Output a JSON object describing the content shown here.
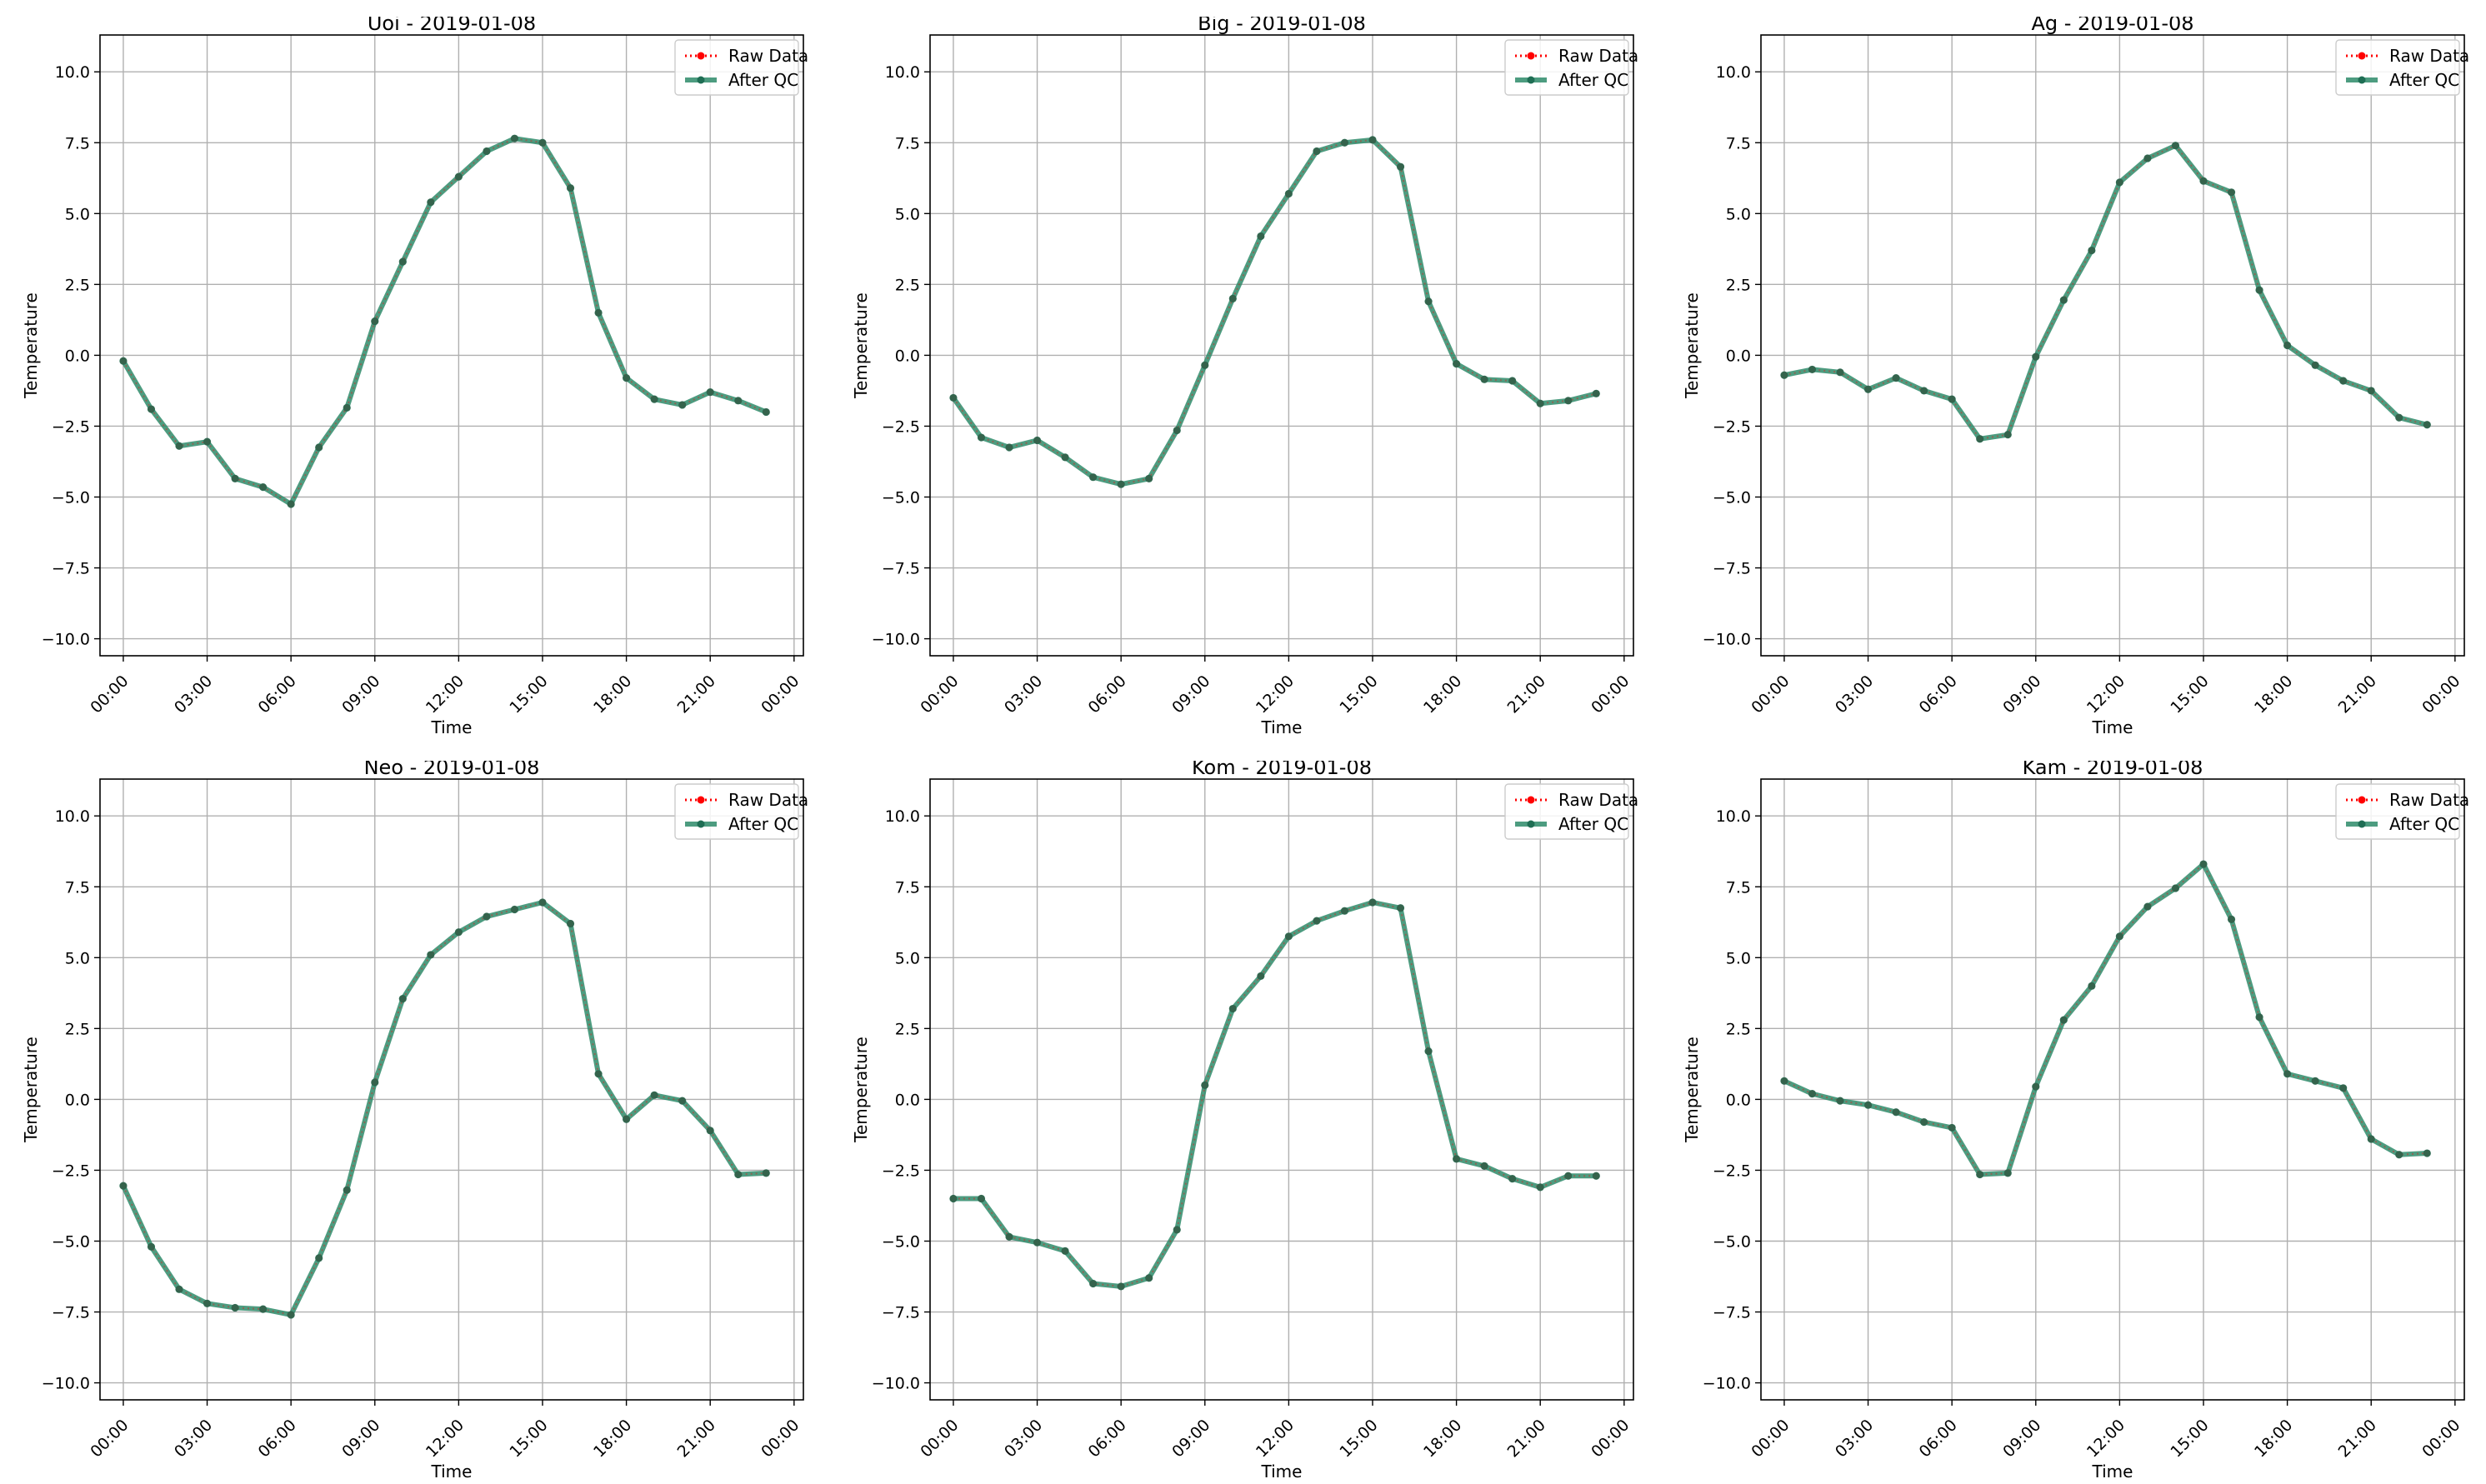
{
  "figure": {
    "background": "#ffffff"
  },
  "style": {
    "raw_color": "#ff0000",
    "qc_color": "#2e8b6a",
    "qc_point_color": "#1f6e54",
    "grid_color": "#b0b0b0",
    "legend_border": "#cccccc"
  },
  "chart_data": [
    {
      "type": "line",
      "title": "Uoi - 2019-01-08",
      "xlabel": "Time",
      "ylabel": "Temperature",
      "x_ticks": [
        "00:00",
        "03:00",
        "06:00",
        "09:00",
        "12:00",
        "15:00",
        "18:00",
        "21:00",
        "00:00"
      ],
      "y_ticks": [
        "10.0",
        "7.5",
        "5.0",
        "2.5",
        "0.0",
        "−2.5",
        "−5.0",
        "−7.5",
        "−10.0"
      ],
      "xlim": [
        "2019-01-07 23:10",
        "2019-01-09 00:20"
      ],
      "ylim": [
        -10.6,
        11.3
      ],
      "grid": true,
      "legend_position": "top-right",
      "x": [
        "00:00",
        "01:00",
        "02:00",
        "03:00",
        "04:00",
        "05:00",
        "06:00",
        "07:00",
        "08:00",
        "09:00",
        "10:00",
        "11:00",
        "12:00",
        "13:00",
        "14:00",
        "15:00",
        "16:00",
        "17:00",
        "18:00",
        "19:00",
        "20:00",
        "21:00",
        "22:00",
        "23:00"
      ],
      "series": [
        {
          "name": "Raw Data",
          "values": [
            -0.2,
            -1.9,
            -3.2,
            -3.05,
            -4.35,
            -4.65,
            -5.25,
            -3.25,
            -1.85,
            1.2,
            3.3,
            5.4,
            6.3,
            7.2,
            7.65,
            7.5,
            5.9,
            1.5,
            -0.8,
            -1.55,
            -1.75,
            -1.3,
            -1.6,
            -2.0
          ]
        },
        {
          "name": "After QC",
          "values": [
            -0.2,
            -1.9,
            -3.2,
            -3.05,
            -4.35,
            -4.65,
            -5.25,
            -3.25,
            -1.85,
            1.2,
            3.3,
            5.4,
            6.3,
            7.2,
            7.65,
            7.5,
            5.9,
            1.5,
            -0.8,
            -1.55,
            -1.75,
            -1.3,
            -1.6,
            -2.0
          ]
        }
      ]
    },
    {
      "type": "line",
      "title": "Big - 2019-01-08",
      "xlabel": "Time",
      "ylabel": "Temperature",
      "x_ticks": [
        "00:00",
        "03:00",
        "06:00",
        "09:00",
        "12:00",
        "15:00",
        "18:00",
        "21:00",
        "00:00"
      ],
      "y_ticks": [
        "10.0",
        "7.5",
        "5.0",
        "2.5",
        "0.0",
        "−2.5",
        "−5.0",
        "−7.5",
        "−10.0"
      ],
      "xlim": [
        "2019-01-07 23:10",
        "2019-01-09 00:20"
      ],
      "ylim": [
        -10.6,
        11.3
      ],
      "grid": true,
      "legend_position": "top-right",
      "x": [
        "00:00",
        "01:00",
        "02:00",
        "03:00",
        "04:00",
        "05:00",
        "06:00",
        "07:00",
        "08:00",
        "09:00",
        "10:00",
        "11:00",
        "12:00",
        "13:00",
        "14:00",
        "15:00",
        "16:00",
        "17:00",
        "18:00",
        "19:00",
        "20:00",
        "21:00",
        "22:00",
        "23:00"
      ],
      "series": [
        {
          "name": "Raw Data",
          "values": [
            -1.5,
            -2.9,
            -3.25,
            -3.0,
            -3.6,
            -4.3,
            -4.55,
            -4.35,
            -2.65,
            -0.35,
            2.0,
            4.2,
            5.7,
            7.2,
            7.5,
            7.6,
            6.65,
            1.9,
            -0.3,
            -0.85,
            -0.9,
            -1.7,
            -1.6,
            -1.35
          ]
        },
        {
          "name": "After QC",
          "values": [
            -1.5,
            -2.9,
            -3.25,
            -3.0,
            -3.6,
            -4.3,
            -4.55,
            -4.35,
            -2.65,
            -0.35,
            2.0,
            4.2,
            5.7,
            7.2,
            7.5,
            7.6,
            6.65,
            1.9,
            -0.3,
            -0.85,
            -0.9,
            -1.7,
            -1.6,
            -1.35
          ]
        }
      ]
    },
    {
      "type": "line",
      "title": "Ag - 2019-01-08",
      "xlabel": "Time",
      "ylabel": "Temperature",
      "x_ticks": [
        "00:00",
        "03:00",
        "06:00",
        "09:00",
        "12:00",
        "15:00",
        "18:00",
        "21:00",
        "00:00"
      ],
      "y_ticks": [
        "10.0",
        "7.5",
        "5.0",
        "2.5",
        "0.0",
        "−2.5",
        "−5.0",
        "−7.5",
        "−10.0"
      ],
      "xlim": [
        "2019-01-07 23:10",
        "2019-01-09 00:20"
      ],
      "ylim": [
        -10.6,
        11.3
      ],
      "grid": true,
      "legend_position": "top-right",
      "x": [
        "00:00",
        "01:00",
        "02:00",
        "03:00",
        "04:00",
        "05:00",
        "06:00",
        "07:00",
        "08:00",
        "09:00",
        "10:00",
        "11:00",
        "12:00",
        "13:00",
        "14:00",
        "15:00",
        "16:00",
        "17:00",
        "18:00",
        "19:00",
        "20:00",
        "21:00",
        "22:00",
        "23:00"
      ],
      "series": [
        {
          "name": "Raw Data",
          "values": [
            -0.7,
            -0.5,
            -0.6,
            -1.2,
            -0.8,
            -1.25,
            -1.55,
            -2.95,
            -2.8,
            -0.05,
            1.95,
            3.7,
            6.1,
            6.95,
            7.4,
            6.15,
            5.75,
            2.3,
            0.35,
            -0.35,
            -0.9,
            -1.25,
            -2.2,
            -2.45
          ]
        },
        {
          "name": "After QC",
          "values": [
            -0.7,
            -0.5,
            -0.6,
            -1.2,
            -0.8,
            -1.25,
            -1.55,
            -2.95,
            -2.8,
            -0.05,
            1.95,
            3.7,
            6.1,
            6.95,
            7.4,
            6.15,
            5.75,
            2.3,
            0.35,
            -0.35,
            -0.9,
            -1.25,
            -2.2,
            -2.45
          ]
        }
      ]
    },
    {
      "type": "line",
      "title": "Neo - 2019-01-08",
      "xlabel": "Time",
      "ylabel": "Temperature",
      "x_ticks": [
        "00:00",
        "03:00",
        "06:00",
        "09:00",
        "12:00",
        "15:00",
        "18:00",
        "21:00",
        "00:00"
      ],
      "y_ticks": [
        "10.0",
        "7.5",
        "5.0",
        "2.5",
        "0.0",
        "−2.5",
        "−5.0",
        "−7.5",
        "−10.0"
      ],
      "xlim": [
        "2019-01-07 23:10",
        "2019-01-09 00:20"
      ],
      "ylim": [
        -10.6,
        11.3
      ],
      "grid": true,
      "legend_position": "top-right",
      "x": [
        "00:00",
        "01:00",
        "02:00",
        "03:00",
        "04:00",
        "05:00",
        "06:00",
        "07:00",
        "08:00",
        "09:00",
        "10:00",
        "11:00",
        "12:00",
        "13:00",
        "14:00",
        "15:00",
        "16:00",
        "17:00",
        "18:00",
        "19:00",
        "20:00",
        "21:00",
        "22:00",
        "23:00"
      ],
      "series": [
        {
          "name": "Raw Data",
          "values": [
            -3.05,
            -5.2,
            -6.7,
            -7.2,
            -7.35,
            -7.4,
            -7.6,
            -5.6,
            -3.2,
            0.6,
            3.55,
            5.1,
            5.9,
            6.45,
            6.7,
            6.95,
            6.2,
            0.9,
            -0.7,
            0.15,
            -0.05,
            -1.1,
            -2.65,
            -2.6
          ]
        },
        {
          "name": "After QC",
          "values": [
            -3.05,
            -5.2,
            -6.7,
            -7.2,
            -7.35,
            -7.4,
            -7.6,
            -5.6,
            -3.2,
            0.6,
            3.55,
            5.1,
            5.9,
            6.45,
            6.7,
            6.95,
            6.2,
            0.9,
            -0.7,
            0.15,
            -0.05,
            -1.1,
            -2.65,
            -2.6
          ]
        }
      ]
    },
    {
      "type": "line",
      "title": "Kom - 2019-01-08",
      "xlabel": "Time",
      "ylabel": "Temperature",
      "x_ticks": [
        "00:00",
        "03:00",
        "06:00",
        "09:00",
        "12:00",
        "15:00",
        "18:00",
        "21:00",
        "00:00"
      ],
      "y_ticks": [
        "10.0",
        "7.5",
        "5.0",
        "2.5",
        "0.0",
        "−2.5",
        "−5.0",
        "−7.5",
        "−10.0"
      ],
      "xlim": [
        "2019-01-07 23:10",
        "2019-01-09 00:20"
      ],
      "ylim": [
        -10.6,
        11.3
      ],
      "grid": true,
      "legend_position": "top-right",
      "x": [
        "00:00",
        "01:00",
        "02:00",
        "03:00",
        "04:00",
        "05:00",
        "06:00",
        "07:00",
        "08:00",
        "09:00",
        "10:00",
        "11:00",
        "12:00",
        "13:00",
        "14:00",
        "15:00",
        "16:00",
        "17:00",
        "18:00",
        "19:00",
        "20:00",
        "21:00",
        "22:00",
        "23:00"
      ],
      "series": [
        {
          "name": "Raw Data",
          "values": [
            -3.5,
            -3.5,
            -4.85,
            -5.05,
            -5.35,
            -6.5,
            -6.6,
            -6.3,
            -4.6,
            0.5,
            3.2,
            4.35,
            5.75,
            6.3,
            6.65,
            6.95,
            6.75,
            1.7,
            -2.1,
            -2.35,
            -2.8,
            -3.1,
            -2.7,
            -2.7
          ]
        },
        {
          "name": "After QC",
          "values": [
            -3.5,
            -3.5,
            -4.85,
            -5.05,
            -5.35,
            -6.5,
            -6.6,
            -6.3,
            -4.6,
            0.5,
            3.2,
            4.35,
            5.75,
            6.3,
            6.65,
            6.95,
            6.75,
            1.7,
            -2.1,
            -2.35,
            -2.8,
            -3.1,
            -2.7,
            -2.7
          ]
        }
      ]
    },
    {
      "type": "line",
      "title": "Kam - 2019-01-08",
      "xlabel": "Time",
      "ylabel": "Temperature",
      "x_ticks": [
        "00:00",
        "03:00",
        "06:00",
        "09:00",
        "12:00",
        "15:00",
        "18:00",
        "21:00",
        "00:00"
      ],
      "y_ticks": [
        "10.0",
        "7.5",
        "5.0",
        "2.5",
        "0.0",
        "−2.5",
        "−5.0",
        "−7.5",
        "−10.0"
      ],
      "xlim": [
        "2019-01-07 23:10",
        "2019-01-09 00:20"
      ],
      "ylim": [
        -10.6,
        11.3
      ],
      "grid": true,
      "legend_position": "top-right",
      "x": [
        "00:00",
        "01:00",
        "02:00",
        "03:00",
        "04:00",
        "05:00",
        "06:00",
        "07:00",
        "08:00",
        "09:00",
        "10:00",
        "11:00",
        "12:00",
        "13:00",
        "14:00",
        "15:00",
        "16:00",
        "17:00",
        "18:00",
        "19:00",
        "20:00",
        "21:00",
        "22:00",
        "23:00"
      ],
      "series": [
        {
          "name": "Raw Data",
          "values": [
            0.65,
            0.2,
            -0.05,
            -0.2,
            -0.45,
            -0.8,
            -1.0,
            -2.65,
            -2.6,
            0.45,
            2.8,
            4.0,
            5.75,
            6.8,
            7.45,
            8.3,
            6.35,
            2.9,
            0.9,
            0.65,
            0.4,
            -1.4,
            -1.95,
            -1.9
          ]
        },
        {
          "name": "After QC",
          "values": [
            0.65,
            0.2,
            -0.05,
            -0.2,
            -0.45,
            -0.8,
            -1.0,
            -2.65,
            -2.6,
            0.45,
            2.8,
            4.0,
            5.75,
            6.8,
            7.45,
            8.3,
            6.35,
            2.9,
            0.9,
            0.65,
            0.4,
            -1.4,
            -1.95,
            -1.9
          ]
        }
      ]
    }
  ]
}
